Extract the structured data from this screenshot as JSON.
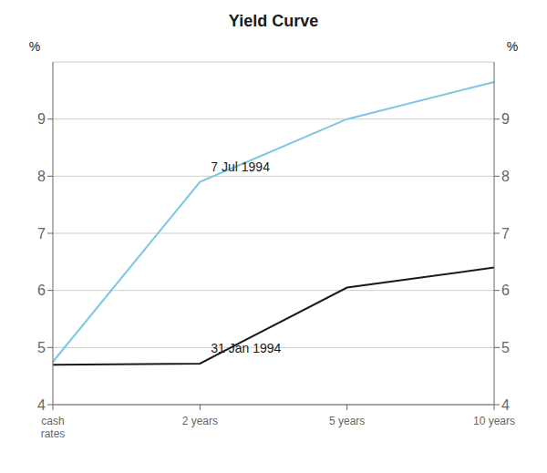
{
  "chart_data": {
    "type": "line",
    "title": "Yield Curve",
    "categories": [
      "cash\nrates",
      "2 years",
      "5 years",
      "10 years"
    ],
    "series": [
      {
        "name": "7 Jul 1994",
        "color": "#7bc8e2",
        "values": [
          4.75,
          7.9,
          9.0,
          9.65
        ]
      },
      {
        "name": "31 Jan 1994",
        "color": "#1a1a1a",
        "values": [
          4.7,
          4.72,
          6.05,
          6.4
        ]
      }
    ],
    "ylim": [
      4,
      10
    ],
    "yticks": [
      4,
      5,
      6,
      7,
      8,
      9
    ],
    "y2lim": [
      4,
      10
    ],
    "y2ticks": [
      4,
      5,
      6,
      7,
      8,
      9
    ],
    "ylabel": "%",
    "y2label": "%",
    "grid": true
  }
}
